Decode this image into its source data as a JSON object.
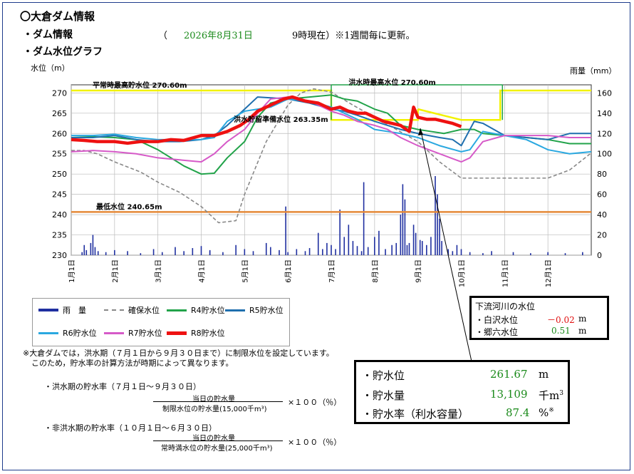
{
  "header": {
    "title": "〇大倉ダム情報",
    "dam_info_label": "・ダム情報",
    "date_open": "（",
    "date": "2026年8月31日",
    "time_suffix": "9時現在）※1週間毎に更新。",
    "graph_label": "・ダム水位グラフ"
  },
  "chart_data": {
    "type": "line",
    "ylabel": "水位（m）",
    "y2label": "雨量（mm）",
    "ylim": [
      230,
      272
    ],
    "y2lim": [
      0,
      168
    ],
    "yticks": [
      "230",
      "235",
      "240",
      "245",
      "250",
      "255",
      "260",
      "265",
      "270"
    ],
    "y2ticks": [
      "0",
      "20",
      "40",
      "60",
      "80",
      "100",
      "120",
      "140",
      "160"
    ],
    "xticks": [
      "1月1日",
      "2月1日",
      "3月1日",
      "4月1日",
      "5月1日",
      "6月1日",
      "7月1日",
      "8月1日",
      "9月1日",
      "10月1日",
      "11月1日",
      "12月1日"
    ],
    "annotations": {
      "normal_max": "平常時最高貯水位 270.60m",
      "flood_max": "洪水時最高水位 270.60m",
      "flood_reserve": "洪水貯留準備水位 263.35m",
      "min_level": "最低水位 240.65m"
    },
    "colors": {
      "rain": "#1f2fa0",
      "secure": "#888888",
      "r4": "#22a34a",
      "r5": "#1f6fae",
      "r6": "#2aa8e0",
      "r7": "#d65ac8",
      "r8": "#ee1111",
      "limit": "#f2f200",
      "min": "#e58a3a"
    },
    "series": [
      {
        "name": "雨 量",
        "key": "rain"
      },
      {
        "name": "確保水位",
        "key": "secure",
        "x": [
          0,
          0.3,
          0.6,
          1,
          1.6,
          2,
          2.5,
          3.0,
          3.4,
          3.8,
          4.0,
          4.5,
          5.0,
          5.3,
          5.6,
          6.0,
          6.5,
          7.0,
          7.5,
          8.0,
          8.5,
          9.0,
          9.3,
          9.5,
          10,
          11,
          11.5,
          12
        ],
        "y": [
          255.8,
          255.8,
          255,
          253,
          250.5,
          248,
          245.5,
          242,
          238,
          238.5,
          245,
          258,
          267,
          270,
          271,
          270.2,
          267,
          264,
          261,
          258,
          253,
          249,
          249,
          249,
          249,
          249,
          251,
          255.2
        ]
      },
      {
        "name": "R4貯水位",
        "key": "r4",
        "x": [
          0,
          0.5,
          1,
          1.5,
          2,
          2.6,
          3,
          3.3,
          3.6,
          4,
          4.3,
          4.6,
          5,
          5.5,
          6,
          6.3,
          6.6,
          7,
          7.3,
          7.6,
          8,
          8.3,
          8.6,
          9,
          9.3,
          9.5,
          10,
          10.5,
          11,
          11.5,
          12
        ],
        "y": [
          259,
          259.2,
          259,
          258.5,
          256,
          252,
          250,
          250.2,
          254,
          258,
          264,
          267.5,
          268.5,
          269,
          269.5,
          268.5,
          268,
          266,
          265,
          262,
          261,
          260.5,
          260,
          261,
          261,
          260,
          259.5,
          259,
          258.5,
          257.5,
          257.5
        ]
      },
      {
        "name": "R5貯水位",
        "key": "r5",
        "x": [
          0,
          0.5,
          1,
          1.5,
          2,
          2.5,
          3,
          3.3,
          3.6,
          4,
          4.3,
          4.6,
          5,
          5.5,
          6,
          6.3,
          6.6,
          7,
          7.3,
          7.6,
          8,
          8.5,
          8.8,
          9,
          9.3,
          9.5,
          10,
          10.5,
          11,
          11.5,
          12
        ],
        "y": [
          259,
          259,
          259.5,
          258.5,
          258,
          258,
          258.5,
          259.5,
          262,
          266,
          269,
          268.8,
          268.5,
          267.5,
          266,
          265.5,
          264.5,
          263,
          262,
          261,
          260,
          259,
          258.5,
          257,
          263,
          262.5,
          259.5,
          259,
          258.5,
          260,
          260
        ]
      },
      {
        "name": "R6貯水位",
        "key": "r6",
        "x": [
          0,
          0.5,
          1,
          1.5,
          2,
          2.5,
          3,
          3.3,
          3.6,
          4,
          4.3,
          4.6,
          5,
          5.5,
          6,
          6.3,
          6.6,
          7,
          7.3,
          7.6,
          8,
          8.5,
          9,
          9.2,
          9.5,
          10,
          10.5,
          11,
          11.5,
          12
        ],
        "y": [
          259.5,
          259.5,
          259.8,
          259,
          258.5,
          258.5,
          258.5,
          259,
          263,
          265.5,
          266,
          266.5,
          268.5,
          268,
          266.5,
          265,
          263.5,
          261,
          260.5,
          260,
          259,
          257,
          255.5,
          256,
          260.5,
          259.5,
          258.5,
          256,
          255,
          255.5
        ]
      },
      {
        "name": "R7貯水位",
        "key": "r7",
        "x": [
          0,
          0.5,
          1,
          1.5,
          2,
          2.5,
          3,
          3.3,
          3.6,
          4,
          4.3,
          4.6,
          5,
          5.5,
          6,
          6.3,
          6.6,
          7,
          7.3,
          7.6,
          8,
          8.5,
          9,
          9.2,
          9.5,
          10,
          10.5,
          11,
          11.5,
          12
        ],
        "y": [
          255.5,
          255.8,
          255.5,
          255,
          254,
          253.5,
          253,
          255,
          258,
          261,
          265,
          268.5,
          269,
          268,
          265.5,
          264.5,
          263,
          262,
          261,
          259,
          257,
          255,
          253,
          254,
          258,
          259.5,
          259.5,
          259.5,
          259,
          259
        ]
      },
      {
        "name": "R8貯水位",
        "key": "r8",
        "x": [
          0,
          0.3,
          0.6,
          1,
          1.3,
          1.6,
          2,
          2.3,
          2.6,
          3,
          3.3,
          3.6,
          3.9,
          4.1,
          4.3,
          4.6,
          4.9,
          5.1,
          5.4,
          5.7,
          6.0,
          6.2,
          6.4,
          6.6,
          6.8,
          7.0,
          7.2,
          7.4,
          7.6,
          7.8,
          7.9,
          8.0,
          8.2,
          8.4,
          8.6,
          8.8,
          9.0
        ],
        "y": [
          258.5,
          258.3,
          258,
          258,
          257.6,
          258,
          258,
          258.5,
          258.3,
          259.5,
          259.5,
          260.5,
          262,
          263.5,
          265.5,
          267,
          268.5,
          269,
          268,
          267.5,
          266,
          266.5,
          265.5,
          265,
          265,
          264,
          263,
          262.5,
          262,
          260.5,
          266.5,
          264,
          263.5,
          263.5,
          263,
          262.5,
          261.7
        ]
      }
    ],
    "rain_bars": [
      [
        0.25,
        3
      ],
      [
        0.35,
        5
      ],
      [
        0.45,
        12
      ],
      [
        0.5,
        20
      ],
      [
        0.55,
        8
      ],
      [
        0.62,
        4
      ],
      [
        0.8,
        3
      ],
      [
        1.0,
        5
      ],
      [
        1.3,
        4
      ],
      [
        1.6,
        2
      ],
      [
        1.9,
        6
      ],
      [
        2.1,
        3
      ],
      [
        2.4,
        8
      ],
      [
        2.6,
        4
      ],
      [
        2.8,
        7
      ],
      [
        3.0,
        9
      ],
      [
        3.2,
        5
      ],
      [
        3.5,
        3
      ],
      [
        3.8,
        10
      ],
      [
        4.0,
        6
      ],
      [
        4.2,
        4
      ],
      [
        4.5,
        12
      ],
      [
        4.6,
        8
      ],
      [
        4.8,
        5
      ],
      [
        5.0,
        3
      ],
      [
        5.2,
        6
      ],
      [
        5.4,
        4
      ],
      [
        5.5,
        7
      ],
      [
        5.7,
        22
      ],
      [
        5.8,
        6
      ],
      [
        5.9,
        12
      ],
      [
        6.0,
        10
      ],
      [
        6.1,
        6
      ],
      [
        6.2,
        45
      ],
      [
        6.3,
        18
      ],
      [
        6.4,
        30
      ],
      [
        6.5,
        14
      ],
      [
        6.6,
        9
      ],
      [
        6.7,
        4
      ],
      [
        6.85,
        8
      ],
      [
        7.0,
        18
      ],
      [
        7.1,
        24
      ],
      [
        7.25,
        6
      ],
      [
        7.4,
        10
      ],
      [
        7.5,
        12
      ],
      [
        7.6,
        40
      ],
      [
        7.65,
        70
      ],
      [
        7.7,
        55
      ],
      [
        7.75,
        10
      ],
      [
        7.8,
        12
      ],
      [
        7.9,
        30
      ],
      [
        7.95,
        22
      ],
      [
        8.05,
        15
      ],
      [
        8.1,
        14
      ],
      [
        8.2,
        10
      ],
      [
        8.3,
        18
      ],
      [
        8.4,
        78
      ],
      [
        8.45,
        60
      ],
      [
        8.5,
        36
      ],
      [
        8.55,
        14
      ],
      [
        8.7,
        6
      ],
      [
        8.8,
        4
      ],
      [
        8.9,
        10
      ],
      [
        9.0,
        6
      ],
      [
        9.2,
        3
      ],
      [
        9.5,
        2
      ],
      [
        9.7,
        4
      ],
      [
        10.2,
        3
      ],
      [
        10.6,
        2
      ],
      [
        11.0,
        3
      ],
      [
        11.4,
        2
      ],
      [
        11.8,
        3
      ],
      [
        6.75,
        72
      ],
      [
        4.95,
        48
      ],
      [
        3.2,
        4
      ],
      [
        0.3,
        10
      ]
    ]
  },
  "legend": {
    "rain": "雨　量",
    "secure": "確保水位",
    "r4": "R4貯水位",
    "r5": "R5貯水位",
    "r6": "R6貯水位",
    "r7": "R7貯水位",
    "r8": "R8貯水位"
  },
  "downstream": {
    "title": "下流河川の水位",
    "item1_label": "・白沢水位",
    "item1_value": "－0.02",
    "item1_unit": "m",
    "item2_label": "・郷六水位",
    "item2_value": "0.51",
    "item2_unit": "m"
  },
  "storage": {
    "level_label": "・貯水位",
    "level_value": "261.67",
    "level_unit": "m",
    "volume_label": "・貯水量",
    "volume_value": "13,109",
    "volume_unit": "千m",
    "volume_sup": "3",
    "rate_label": "・貯水率（利水容量）",
    "rate_value": "87.4",
    "rate_unit": "%",
    "rate_sup": "※"
  },
  "notes": {
    "line1": "※大倉ダムでは，洪水期（７月１日から９月３０日まで）に制限水位を設定しています。",
    "line2": "このため，貯水率の計算方法が時期によって異なります。",
    "flood_title": "・洪水期の貯水率（７月１日～９月３０日）",
    "flood_num": "当日の貯水量",
    "flood_den": "制限水位の貯水量(15,000千m³)",
    "times": "×１００（％）",
    "nonflood_title": "・非洪水期の貯水率（１０月１日～６月３０日）",
    "nonflood_num": "当日の貯水量",
    "nonflood_den": "常時満水位の貯水量(25,000千m³)"
  }
}
